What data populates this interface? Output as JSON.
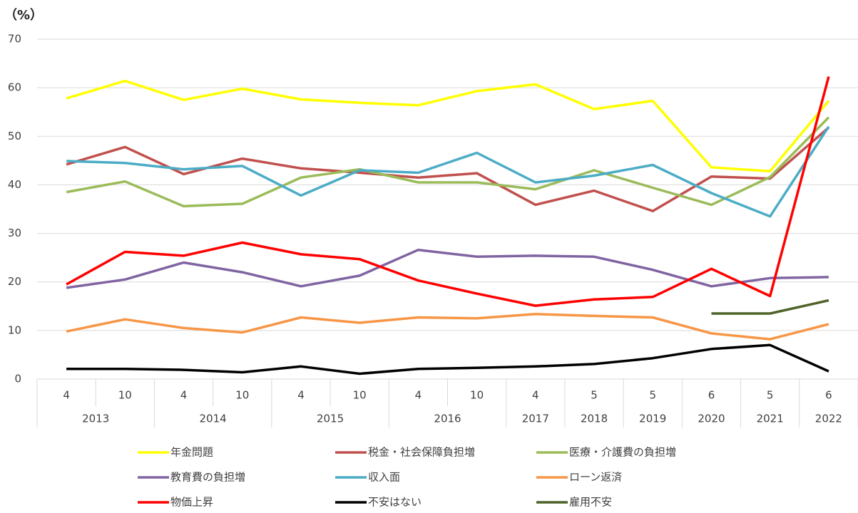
{
  "chart_data": {
    "type": "line",
    "y_unit_label": "（%）",
    "categories": [
      "4",
      "10",
      "4",
      "10",
      "4",
      "10",
      "4",
      "10",
      "4",
      "5",
      "5",
      "6",
      "5",
      "6"
    ],
    "years": [
      "2013",
      null,
      "2014",
      null,
      "2015",
      null,
      "2016",
      null,
      "2017",
      "2018",
      "2019",
      "2020",
      "2021",
      "2022"
    ],
    "ylim": [
      0,
      70
    ],
    "yticks": [
      0,
      10,
      20,
      30,
      40,
      50,
      60,
      70
    ],
    "grid": true,
    "series": [
      {
        "name": "年金問題",
        "color": "#ffff00",
        "values": [
          57.8,
          61.4,
          57.5,
          59.8,
          57.6,
          56.9,
          56.4,
          59.3,
          60.7,
          55.6,
          57.3,
          43.6,
          42.8,
          57.3
        ]
      },
      {
        "name": "税金・社会保障負担増",
        "color": "#c0504d",
        "values": [
          44.2,
          47.8,
          42.2,
          45.4,
          43.4,
          42.5,
          41.5,
          42.4,
          35.9,
          38.8,
          34.6,
          41.7,
          41.3,
          51.8
        ]
      },
      {
        "name": "医療・介護費の負担増",
        "color": "#9bbb59",
        "values": [
          38.5,
          40.7,
          35.6,
          36.1,
          41.5,
          43.2,
          40.5,
          40.5,
          39.1,
          43.0,
          39.4,
          35.9,
          41.6,
          53.9
        ]
      },
      {
        "name": "教育費の負担増",
        "color": "#8064a2",
        "values": [
          18.8,
          20.5,
          24.0,
          22.0,
          19.1,
          21.3,
          26.6,
          25.2,
          25.4,
          25.2,
          22.5,
          19.1,
          20.8,
          21.0
        ]
      },
      {
        "name": "収入面",
        "color": "#4bacc6",
        "values": [
          44.9,
          44.5,
          43.2,
          43.9,
          37.8,
          43.0,
          42.5,
          46.6,
          40.5,
          41.9,
          44.1,
          38.3,
          33.5,
          52.0
        ]
      },
      {
        "name": "ローン返済",
        "color": "#f79646",
        "values": [
          9.8,
          12.3,
          10.5,
          9.6,
          12.7,
          11.6,
          12.7,
          12.5,
          13.4,
          13.0,
          12.7,
          9.4,
          8.2,
          11.3
        ]
      },
      {
        "name": "物価上昇",
        "color": "#ff0000",
        "values": [
          19.5,
          26.2,
          25.4,
          28.1,
          25.7,
          24.7,
          20.3,
          17.6,
          15.1,
          16.4,
          16.9,
          22.7,
          17.1,
          62.3
        ]
      },
      {
        "name": "不安はない",
        "color": "#000000",
        "values": [
          2.1,
          2.1,
          1.9,
          1.4,
          2.6,
          1.1,
          2.1,
          2.3,
          2.6,
          3.1,
          4.3,
          6.2,
          7.0,
          1.6
        ]
      },
      {
        "name": "雇用不安",
        "color": "#4f6228",
        "values": [
          null,
          null,
          null,
          null,
          null,
          null,
          null,
          null,
          null,
          null,
          null,
          13.5,
          13.5,
          16.2
        ]
      }
    ]
  }
}
